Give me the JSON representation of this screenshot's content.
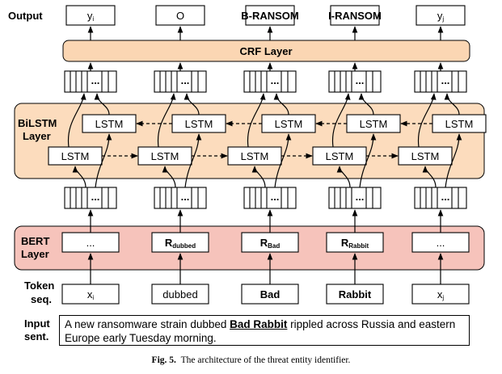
{
  "labels": {
    "output": "Output",
    "bilstm_line1": "BiLSTM",
    "bilstm_line2": "Layer",
    "bert_line1": "BERT",
    "bert_line2": "Layer",
    "token_line1": "Token",
    "token_line2": "seq.",
    "input_line1": "Input",
    "input_line2": "sent."
  },
  "outputs": [
    {
      "main": "y",
      "sub": "i"
    },
    {
      "main": "O",
      "sub": ""
    },
    {
      "main": "B-RANSOM",
      "sub": ""
    },
    {
      "main": "I-RANSOM",
      "sub": ""
    },
    {
      "main": "y",
      "sub": "j"
    }
  ],
  "crf_label": "CRF Layer",
  "lstm_label": "LSTM",
  "vector_ellipsis": "...",
  "bert_cells": [
    {
      "main": "...",
      "sub": ""
    },
    {
      "main": "R",
      "sub": "dubbed"
    },
    {
      "main": "R",
      "sub": "Bad"
    },
    {
      "main": "R",
      "sub": "Rabbit"
    },
    {
      "main": "...",
      "sub": ""
    }
  ],
  "tokens": [
    {
      "main": "x",
      "sub": "i",
      "bold": false
    },
    {
      "main": "dubbed",
      "sub": "",
      "bold": false
    },
    {
      "main": "Bad",
      "sub": "",
      "bold": true
    },
    {
      "main": "Rabbit",
      "sub": "",
      "bold": true
    },
    {
      "main": "x",
      "sub": "j",
      "bold": false
    }
  ],
  "sentence": {
    "before": "A new ransomware strain dubbed ",
    "highlight": "Bad Rabbit",
    "after": " rippled across Russia and eastern Europe early Tuesday morning."
  },
  "caption": {
    "label": "Fig. 5.",
    "text": "The architecture of the threat entity identifier."
  },
  "colors": {
    "crf_fill": "#fbd6b3",
    "bilstm_fill": "#fcdcbd",
    "bert_fill": "#f6c3bb"
  }
}
